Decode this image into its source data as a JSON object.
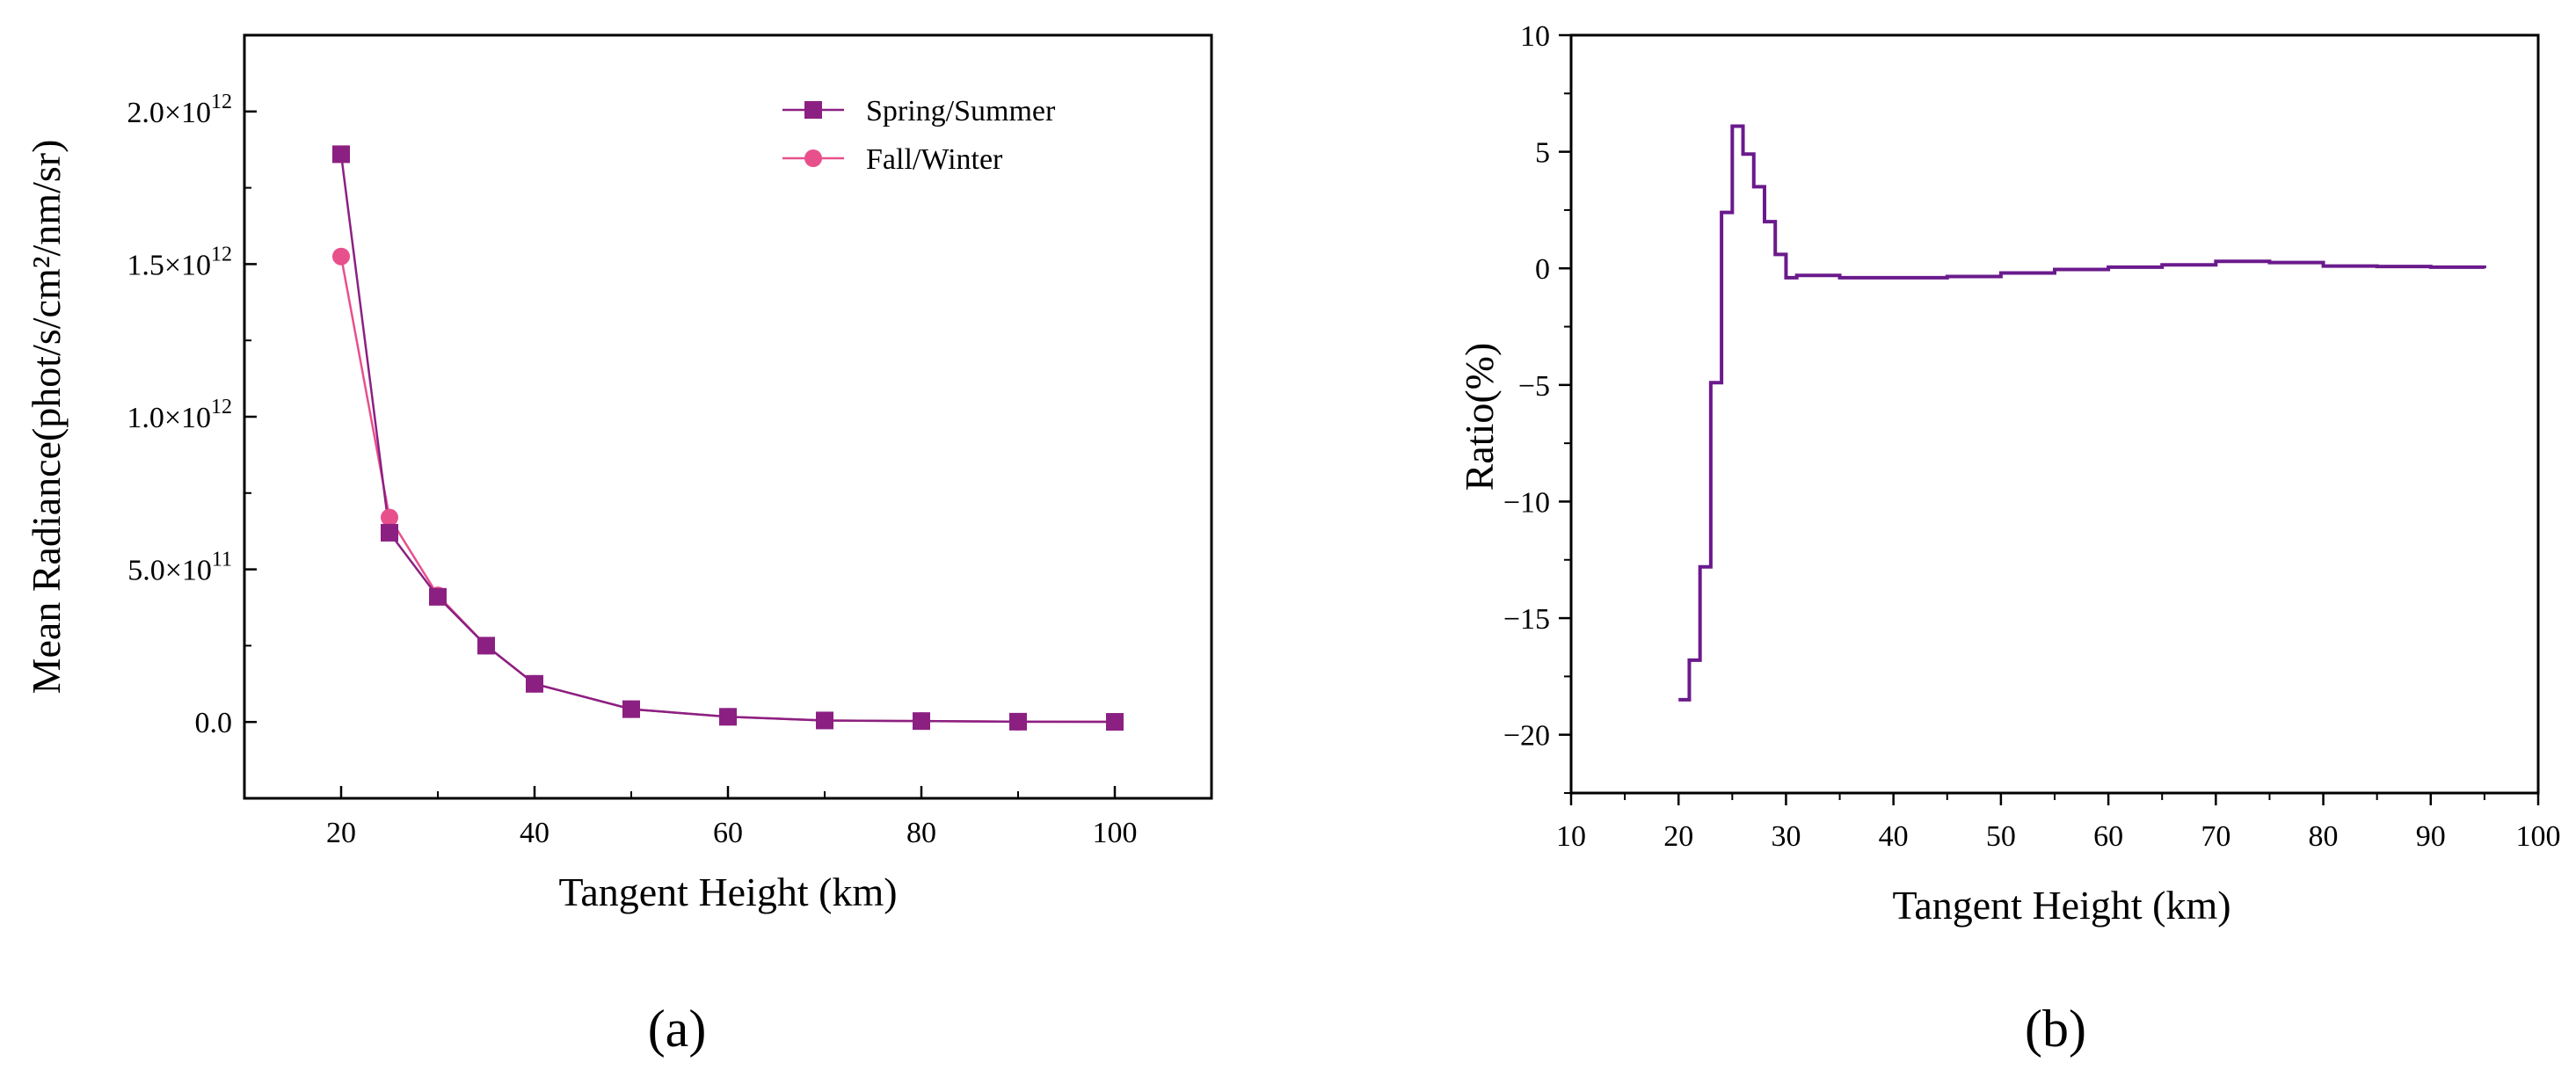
{
  "chart_data": [
    {
      "type": "line",
      "panel": "(a)",
      "xlabel": "Tangent Height (km)",
      "ylabel": "Mean Radiance(phot/s/cm²/nm/sr)",
      "xlim": [
        10,
        110
      ],
      "ylim": [
        -250000000000.0,
        2250000000000.0
      ],
      "xticks": [
        20,
        40,
        60,
        80,
        100
      ],
      "x_tick_labels": [
        "20",
        "40",
        "60",
        "80",
        "100"
      ],
      "yticks": [
        {
          "value": 0,
          "mantissa": "0.0",
          "exp": ""
        },
        {
          "value": 500000000000.0,
          "mantissa": "5.0×10",
          "exp": "11"
        },
        {
          "value": 1000000000000.0,
          "mantissa": "1.0×10",
          "exp": "12"
        },
        {
          "value": 1500000000000.0,
          "mantissa": "1.5×10",
          "exp": "12"
        },
        {
          "value": 2000000000000.0,
          "mantissa": "2.0×10",
          "exp": "12"
        }
      ],
      "x": [
        20,
        25,
        30,
        35,
        40,
        50,
        60,
        70,
        80,
        90,
        100
      ],
      "series": [
        {
          "name": "Spring/Summer",
          "color": "#8b2082",
          "marker": "square",
          "values": [
            1860000000000.0,
            620000000000.0,
            410000000000.0,
            250000000000.0,
            125000000000.0,
            42000000000.0,
            17000000000.0,
            5000000000.0,
            3000000000.0,
            1000000000.0,
            500000000.0
          ]
        },
        {
          "name": "Fall/Winter",
          "color": "#e8508c",
          "marker": "circle",
          "values": [
            1525000000000.0,
            670000000000.0,
            415000000000.0,
            250000000000.0,
            125000000000.0,
            42000000000.0,
            17000000000.0,
            5000000000.0,
            3000000000.0,
            1000000000.0,
            500000000.0
          ]
        }
      ],
      "legend_position": "top-right"
    },
    {
      "type": "line",
      "panel": "(b)",
      "xlabel": "Tangent Height (km)",
      "ylabel": "Ratio(%)",
      "xlim": [
        10,
        100
      ],
      "ylim": [
        -22.5,
        10
      ],
      "xticks": [
        10,
        20,
        30,
        40,
        50,
        60,
        70,
        80,
        90,
        100
      ],
      "x_tick_labels": [
        "10",
        "20",
        "30",
        "40",
        "50",
        "60",
        "70",
        "80",
        "90",
        "100"
      ],
      "yticks": [
        -20,
        -15,
        -10,
        -5,
        0,
        5,
        10
      ],
      "y_tick_labels": [
        "−20",
        "−15",
        "−10",
        "−5",
        "0",
        "5",
        "10"
      ],
      "series": [
        {
          "name": "Ratio",
          "color": "#6a1a8c",
          "step": true,
          "x": [
            20,
            21,
            22,
            23,
            24,
            25,
            26,
            27,
            28,
            29,
            30,
            31,
            35,
            40,
            45,
            50,
            55,
            60,
            65,
            70,
            75,
            80,
            85,
            90,
            95
          ],
          "values": [
            -18.5,
            -16.8,
            -12.8,
            -4.9,
            2.4,
            6.1,
            4.9,
            3.5,
            2.0,
            0.6,
            -0.4,
            -0.3,
            -0.4,
            -0.4,
            -0.35,
            -0.2,
            -0.05,
            0.05,
            0.15,
            0.3,
            0.25,
            0.1,
            0.08,
            0.05,
            0.0
          ]
        }
      ]
    }
  ]
}
